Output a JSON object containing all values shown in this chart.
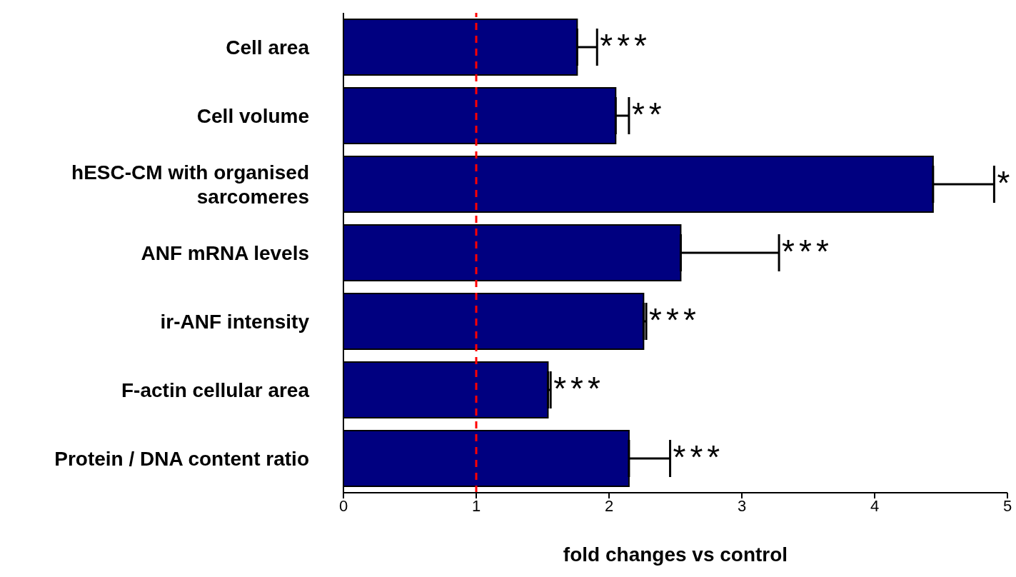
{
  "chart_data": {
    "type": "bar",
    "orientation": "horizontal",
    "xlabel": "fold changes vs control",
    "categories": [
      "Cell area",
      "Cell volume",
      "hESC-CM with organised sarcomeres",
      "ANF mRNA levels",
      "ir-ANF intensity",
      "F-actin cellular area",
      "Protein / DNA content ratio"
    ],
    "values": [
      1.76,
      2.05,
      4.44,
      2.54,
      2.26,
      1.54,
      2.15
    ],
    "errors": [
      [
        1.76,
        1.91
      ],
      [
        2.05,
        2.15
      ],
      [
        4.44,
        4.9
      ],
      [
        2.54,
        3.28
      ],
      [
        2.26,
        2.28
      ],
      [
        1.54,
        1.56
      ],
      [
        2.15,
        2.46
      ]
    ],
    "color": "#000080",
    "xlim": [
      0,
      5
    ],
    "xticks": [
      0,
      1,
      2,
      3,
      4,
      5
    ],
    "grid": false,
    "ref_lines": [
      {
        "axis": "x",
        "value": 1,
        "color": "#ff0000",
        "line_style": "dashed"
      }
    ],
    "annotations": [
      {
        "text": "***",
        "x": 1.91,
        "y": "Cell area"
      },
      {
        "text": "**",
        "x": 2.15,
        "y": "Cell volume"
      },
      {
        "text": "*",
        "x": 4.9,
        "y": "hESC-CM with organised sarcomeres"
      },
      {
        "text": "***",
        "x": 3.28,
        "y": "ANF mRNA levels"
      },
      {
        "text": "***",
        "x": 2.28,
        "y": "ir-ANF intensity"
      },
      {
        "text": "***",
        "x": 1.56,
        "y": "F-actin cellular area"
      },
      {
        "text": "***",
        "x": 2.46,
        "y": "Protein / DNA content ratio"
      }
    ]
  }
}
